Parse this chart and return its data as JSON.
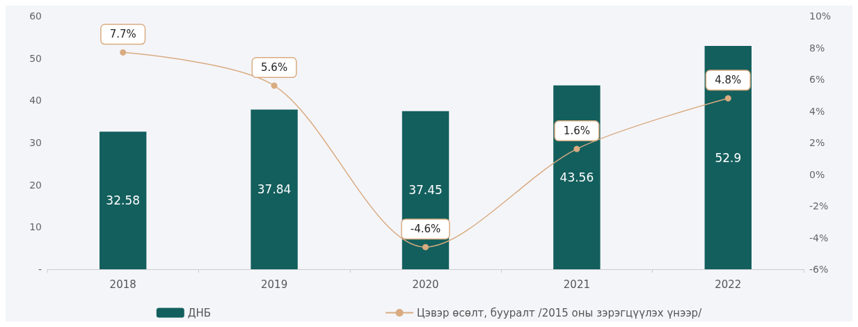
{
  "chart_data": {
    "type": "bar",
    "categories": [
      "2018",
      "2019",
      "2020",
      "2021",
      "2022"
    ],
    "series": [
      {
        "name": "ДНБ",
        "color": "#135f5d",
        "values": [
          32.58,
          37.84,
          37.45,
          43.56,
          52.9
        ],
        "value_labels": [
          "32.58",
          "37.84",
          "37.45",
          "43.56",
          "52.9"
        ]
      },
      {
        "name": "Цэвэр өсөлт, бууралт /2015 оны зэрэгцүүлэх үнээр/",
        "type": "line",
        "axis": "y2",
        "color": "#d9ab80",
        "values": [
          7.7,
          5.6,
          -4.6,
          1.6,
          4.8
        ],
        "value_labels": [
          "7.7%",
          "5.6%",
          "-4.6%",
          "1.6%",
          "4.8%"
        ],
        "marker": "circle"
      }
    ],
    "ylim": [
      0,
      60
    ],
    "yticks": [
      {
        "value": 0,
        "label": "-"
      },
      10,
      20,
      30,
      40,
      50,
      60
    ],
    "y2lim": [
      -6,
      10
    ],
    "y2ticks": [
      {
        "value": -6,
        "label": "-6%"
      },
      {
        "value": -4,
        "label": "-4%"
      },
      {
        "value": -2,
        "label": "-2%"
      },
      {
        "value": 0,
        "label": "0%"
      },
      {
        "value": 2,
        "label": "2%"
      },
      {
        "value": 4,
        "label": "4%"
      },
      {
        "value": 6,
        "label": "6%"
      },
      {
        "value": 8,
        "label": "8%"
      },
      {
        "value": 10,
        "label": "10%"
      }
    ],
    "grid": false,
    "legend": "bottom"
  }
}
